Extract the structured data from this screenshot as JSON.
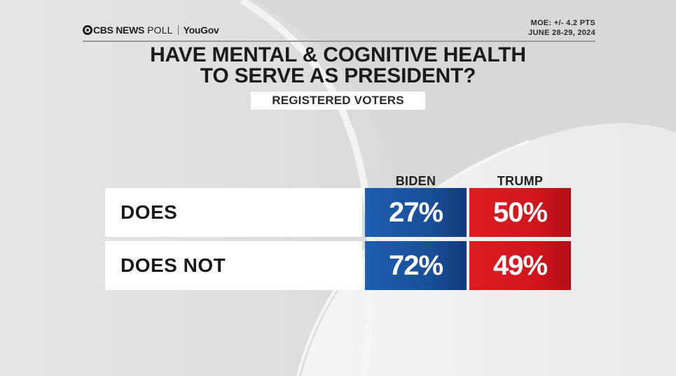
{
  "header": {
    "brand_news": "CBS NEWS",
    "brand_poll": "POLL",
    "brand_partner": "YouGov",
    "moe": "MOE: +/- 4.2 PTS",
    "dates": "JUNE 28-29, 2024"
  },
  "chart_data": {
    "type": "table",
    "title_lines": [
      "HAVE MENTAL & COGNITIVE HEALTH",
      "TO SERVE AS PRESIDENT?"
    ],
    "subtitle": "REGISTERED VOTERS",
    "columns": [
      "BIDEN",
      "TRUMP"
    ],
    "rows": [
      {
        "label": "DOES",
        "values": [
          27,
          50
        ]
      },
      {
        "label": "DOES NOT",
        "values": [
          72,
          49
        ]
      }
    ],
    "display": [
      [
        "27%",
        "50%"
      ],
      [
        "72%",
        "49%"
      ]
    ],
    "unit": "%",
    "colors": {
      "BIDEN": "#1a4f98",
      "TRUMP": "#d0161d"
    }
  }
}
